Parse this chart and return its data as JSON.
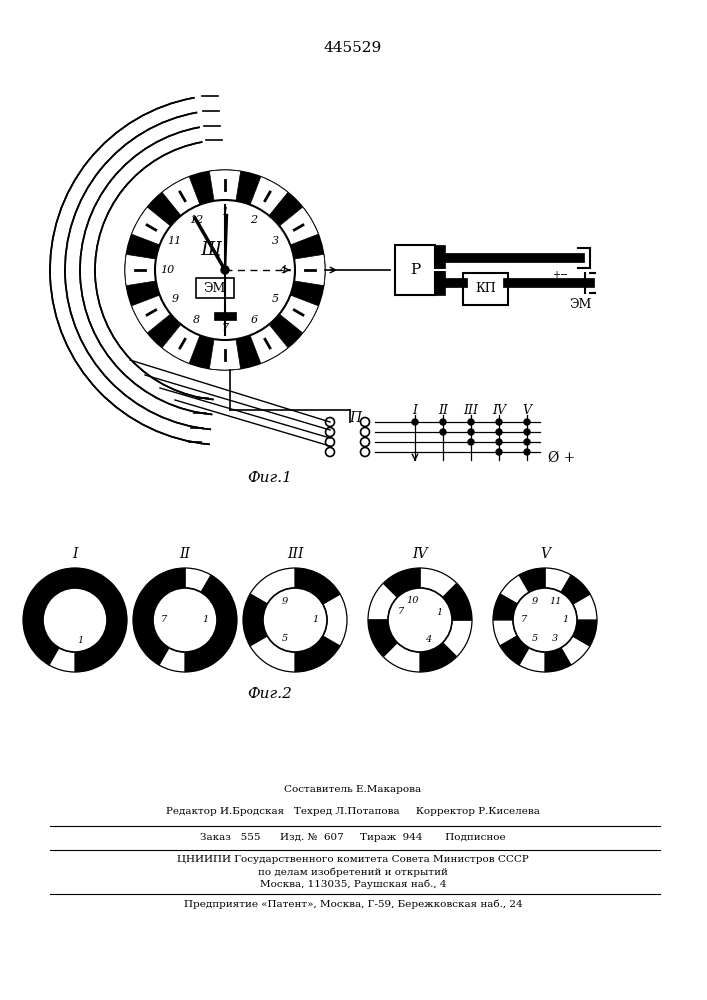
{
  "patent_number": "445529",
  "fig1_label": "Фиг.1",
  "fig2_label": "Фиг.2",
  "щ_label": "Щ",
  "эм_label": "ЭМ",
  "р_label": "Р",
  "кп_label": "КП",
  "эм2_label": "ЭМ",
  "п_label": "П",
  "col_labels": [
    "I",
    "II",
    "III",
    "IV",
    "V"
  ],
  "fig2_labels": [
    "I",
    "II",
    "III",
    "IV",
    "V"
  ],
  "footer_line1": "Составитель Е.Макарова",
  "footer_line2": "Редактор И.Бродская   Техред Л.Потапова     Корректор Р.Киселева",
  "footer_line3": "Заказ   555      Изд. №  607     Тираж  944       Подписное",
  "footer_line4": "ЦНИИПИ Государственного комитета Совета Министров СССР",
  "footer_line5": "по делам изобретений и открытий",
  "footer_line6": "Москва, 113035, Раушская наб., 4",
  "footer_line7": "Предприятие «Патент», Москва, Г-59, Бережковская наб., 24"
}
